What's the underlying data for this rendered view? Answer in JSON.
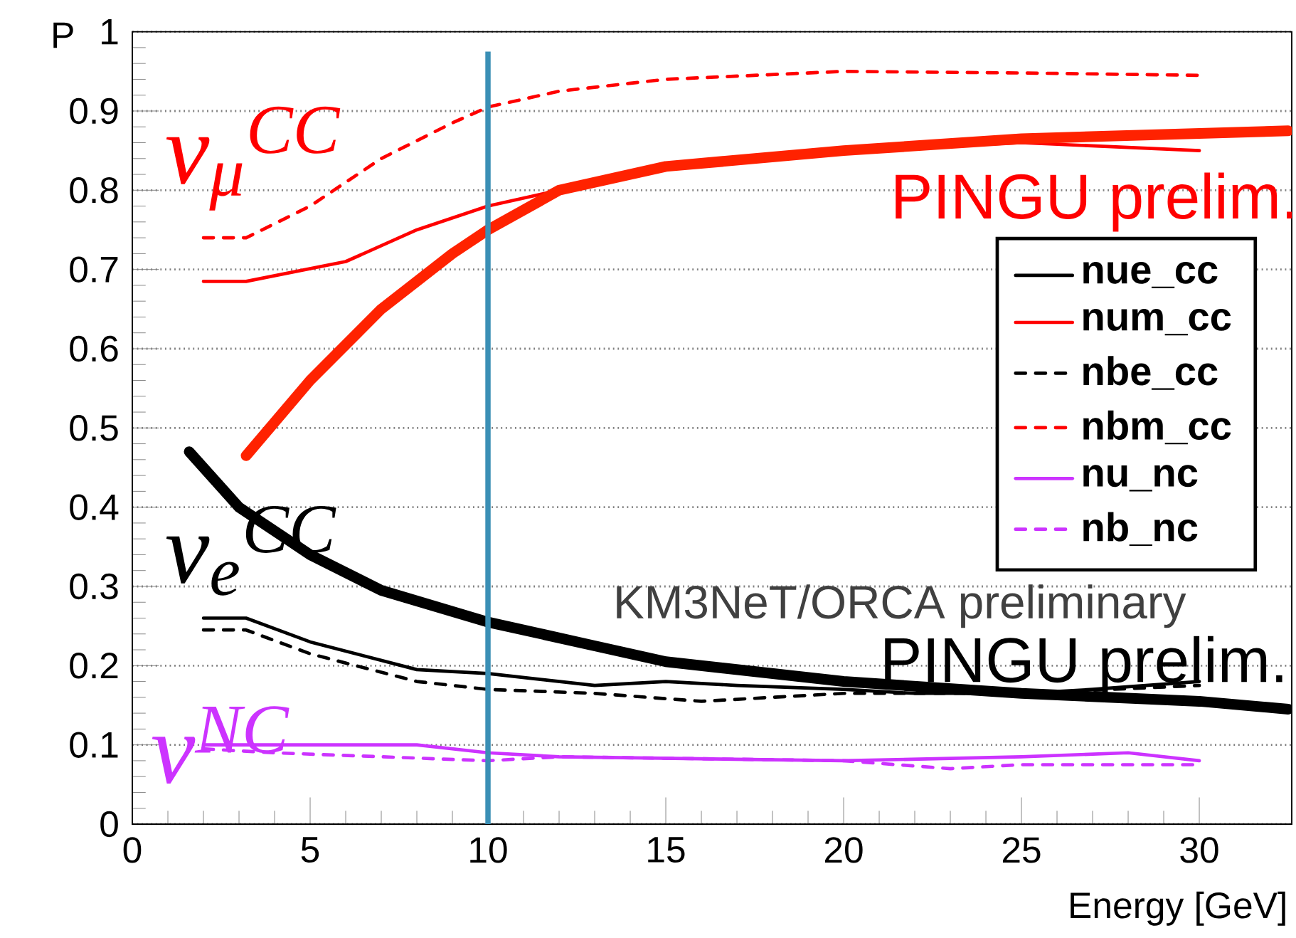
{
  "chart_data": {
    "type": "line",
    "xlabel": "Energy [GeV]",
    "ylabel": "P",
    "xlim": [
      0,
      32.6
    ],
    "ylim": [
      0,
      1
    ],
    "xticks": [
      0,
      5,
      10,
      15,
      20,
      25,
      30
    ],
    "yticks": [
      0,
      0.1,
      0.2,
      0.3,
      0.4,
      0.5,
      0.6,
      0.7,
      0.8,
      0.9,
      1
    ],
    "grid": "y",
    "legend": "right",
    "marker": "none",
    "series": [
      {
        "name": "nue_cc",
        "color": "#000000",
        "line_style": "solid",
        "x": [
          2,
          3.2,
          5,
          8,
          10,
          13,
          15,
          17,
          20,
          22,
          25,
          27,
          30
        ],
        "values": [
          0.26,
          0.26,
          0.23,
          0.195,
          0.19,
          0.175,
          0.18,
          0.175,
          0.17,
          0.165,
          0.165,
          0.17,
          0.18
        ]
      },
      {
        "name": "num_cc",
        "color": "#ff0000",
        "line_style": "solid",
        "x": [
          2,
          3.2,
          6,
          8,
          10,
          12,
          15,
          20,
          25,
          30
        ],
        "values": [
          0.685,
          0.685,
          0.71,
          0.75,
          0.78,
          0.8,
          0.83,
          0.85,
          0.86,
          0.85
        ]
      },
      {
        "name": "nbe_cc",
        "color": "#000000",
        "line_style": "dashed",
        "x": [
          2,
          3.2,
          5,
          8,
          10,
          13,
          16,
          20,
          25,
          30
        ],
        "values": [
          0.245,
          0.245,
          0.215,
          0.18,
          0.17,
          0.165,
          0.155,
          0.165,
          0.165,
          0.175
        ]
      },
      {
        "name": "nbm_cc",
        "color": "#ff0000",
        "line_style": "dashed",
        "x": [
          2,
          3.2,
          5,
          7,
          9,
          10,
          12,
          15,
          20,
          25,
          30
        ],
        "values": [
          0.74,
          0.74,
          0.78,
          0.84,
          0.885,
          0.905,
          0.925,
          0.94,
          0.95,
          0.948,
          0.945
        ]
      },
      {
        "name": "nu_nc",
        "color": "#cc33ff",
        "line_style": "solid",
        "x": [
          2,
          8,
          10,
          12,
          20,
          25,
          28,
          30
        ],
        "values": [
          0.1,
          0.1,
          0.09,
          0.085,
          0.08,
          0.085,
          0.09,
          0.08
        ]
      },
      {
        "name": "nb_nc",
        "color": "#cc33ff",
        "line_style": "dashed",
        "x": [
          2,
          4,
          10,
          12,
          20,
          23,
          25,
          30
        ],
        "values": [
          0.095,
          0.09,
          0.08,
          0.085,
          0.08,
          0.07,
          0.075,
          0.075
        ]
      },
      {
        "color": "#ff2200",
        "line_style": "solid",
        "x": [
          3.2,
          5,
          7,
          9,
          10,
          12,
          15,
          20,
          25,
          32.5
        ],
        "values": [
          0.465,
          0.56,
          0.65,
          0.72,
          0.75,
          0.8,
          0.83,
          0.85,
          0.865,
          0.875
        ]
      },
      {
        "color": "#000000",
        "line_style": "solid",
        "x": [
          1.6,
          3,
          5,
          7,
          10,
          13,
          15,
          20,
          25,
          30,
          32.5
        ],
        "values": [
          0.47,
          0.4,
          0.34,
          0.295,
          0.255,
          0.225,
          0.205,
          0.18,
          0.165,
          0.155,
          0.145
        ]
      }
    ],
    "ref_lines": [
      {
        "axis": "x",
        "value": 10,
        "color": "#3a8fb5"
      }
    ],
    "annotations": [
      "ν$_{μ}$$^{CC}$",
      "ν$_{e}$$^{CC}$",
      "ν$^{NC}$",
      "PINGU prelim.",
      "KM3NeT/ORCA preliminary",
      "PINGU prelim."
    ]
  }
}
